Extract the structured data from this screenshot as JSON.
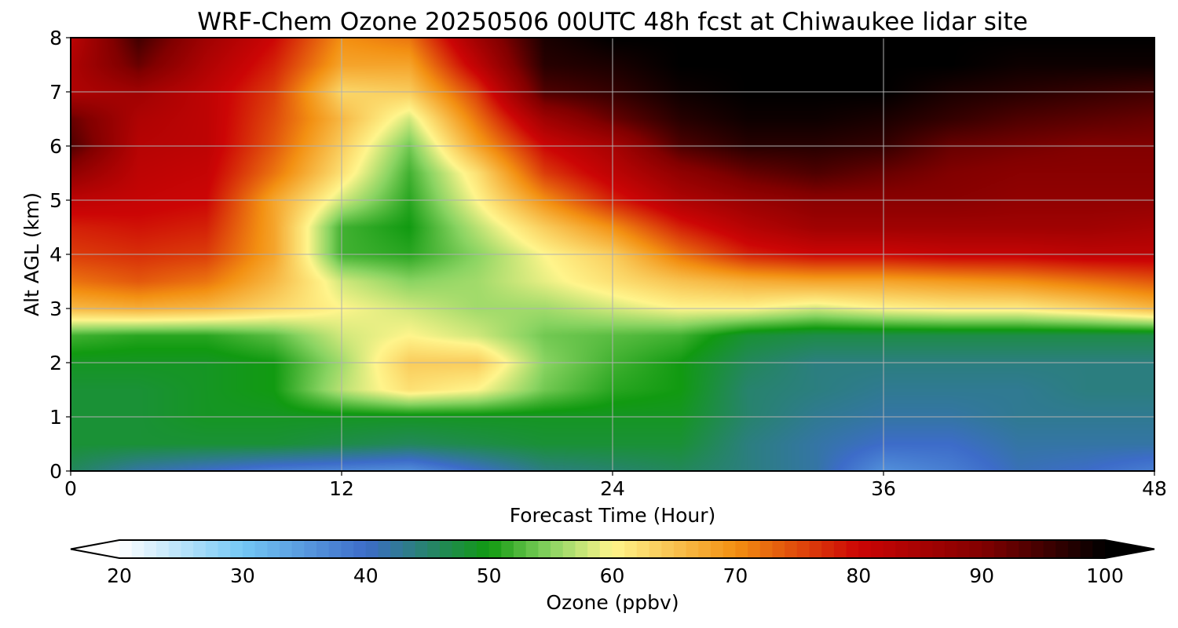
{
  "chart_data": {
    "type": "heatmap",
    "title": "WRF-Chem Ozone  20250506 00UTC 48h fcst at Chiwaukee lidar site",
    "xlabel": "Forecast Time (Hour)",
    "ylabel": "Alt AGL (km)",
    "xlim": [
      0,
      48
    ],
    "ylim": [
      0,
      8
    ],
    "x_ticks": [
      "0",
      "12",
      "24",
      "36",
      "48"
    ],
    "y_ticks": [
      "0",
      "1",
      "2",
      "3",
      "4",
      "5",
      "6",
      "7",
      "8"
    ],
    "grid": true,
    "colorbar": {
      "label": "Ozone  (ppbv)",
      "range": [
        20,
        100
      ],
      "ticks": [
        "20",
        "30",
        "40",
        "50",
        "60",
        "70",
        "80",
        "90",
        "100"
      ],
      "extend": "both",
      "orientation": "horizontal",
      "colors": {
        "20": "#ffffff",
        "30": "#74c8f5",
        "40": "#3d6cc9",
        "50": "#119a11",
        "55": "#8ad462",
        "60": "#fff58c",
        "65": "#f8c250",
        "70": "#f39012",
        "80": "#cc0505",
        "90": "#820000",
        "100": "#000000"
      }
    },
    "hours": [
      0,
      3,
      6,
      9,
      12,
      15,
      18,
      21,
      24,
      27,
      30,
      33,
      36,
      39,
      42,
      45,
      48
    ],
    "altitudes_km": [
      0,
      0.5,
      1,
      1.5,
      2,
      2.5,
      3,
      3.5,
      4,
      4.5,
      5,
      5.5,
      6,
      6.5,
      7,
      7.5,
      8
    ],
    "ozone_ppbv": [
      [
        46,
        42,
        40,
        38,
        37,
        36,
        40,
        44,
        45,
        46,
        44,
        42,
        36,
        38,
        41,
        40,
        38
      ],
      [
        48,
        48,
        48,
        48,
        47,
        46,
        47,
        48,
        48,
        48,
        44,
        42,
        40,
        40,
        42,
        42,
        42
      ],
      [
        48,
        48,
        49,
        49,
        49,
        49,
        49,
        49,
        49,
        49,
        45,
        43,
        42,
        42,
        43,
        43,
        43
      ],
      [
        48,
        48,
        49,
        50,
        57,
        62,
        60,
        54,
        51,
        50,
        45,
        44,
        43,
        43,
        43,
        44,
        44
      ],
      [
        49,
        49,
        49,
        50,
        56,
        64,
        64,
        55,
        52,
        50,
        46,
        44,
        44,
        44,
        44,
        44,
        44
      ],
      [
        52,
        51,
        51,
        53,
        58,
        60,
        58,
        54,
        53,
        52,
        48,
        47,
        47,
        47,
        47,
        47,
        47
      ],
      [
        66,
        67,
        66,
        63,
        60,
        58,
        56,
        56,
        58,
        60,
        60,
        58,
        60,
        61,
        61,
        63,
        66
      ],
      [
        72,
        74,
        72,
        66,
        58,
        55,
        56,
        59,
        62,
        65,
        67,
        68,
        68,
        69,
        70,
        72,
        74
      ],
      [
        76,
        77,
        76,
        68,
        52,
        51,
        55,
        60,
        64,
        72,
        78,
        80,
        80,
        81,
        81,
        82,
        82
      ],
      [
        78,
        79,
        78,
        68,
        52,
        50,
        57,
        64,
        70,
        78,
        83,
        86,
        86,
        86,
        86,
        86,
        85
      ],
      [
        82,
        81,
        80,
        68,
        58,
        51,
        60,
        70,
        78,
        84,
        87,
        89,
        89,
        89,
        88,
        88,
        88
      ],
      [
        88,
        82,
        81,
        72,
        62,
        52,
        62,
        76,
        82,
        88,
        92,
        94,
        92,
        90,
        89,
        89,
        89
      ],
      [
        94,
        83,
        82,
        74,
        64,
        54,
        68,
        80,
        85,
        94,
        97,
        97,
        96,
        92,
        91,
        90,
        90
      ],
      [
        92,
        84,
        82,
        75,
        66,
        58,
        72,
        86,
        92,
        97,
        99,
        99,
        98,
        96,
        94,
        93,
        92
      ],
      [
        84,
        86,
        82,
        76,
        63,
        64,
        76,
        94,
        96,
        99,
        100,
        100,
        100,
        98,
        97,
        96,
        95
      ],
      [
        84,
        92,
        84,
        78,
        68,
        68,
        82,
        97,
        98,
        100,
        100,
        100,
        100,
        100,
        99,
        99,
        99
      ],
      [
        82,
        95,
        86,
        80,
        70,
        72,
        86,
        98,
        100,
        100,
        100,
        100,
        100,
        100,
        100,
        100,
        100
      ]
    ]
  }
}
